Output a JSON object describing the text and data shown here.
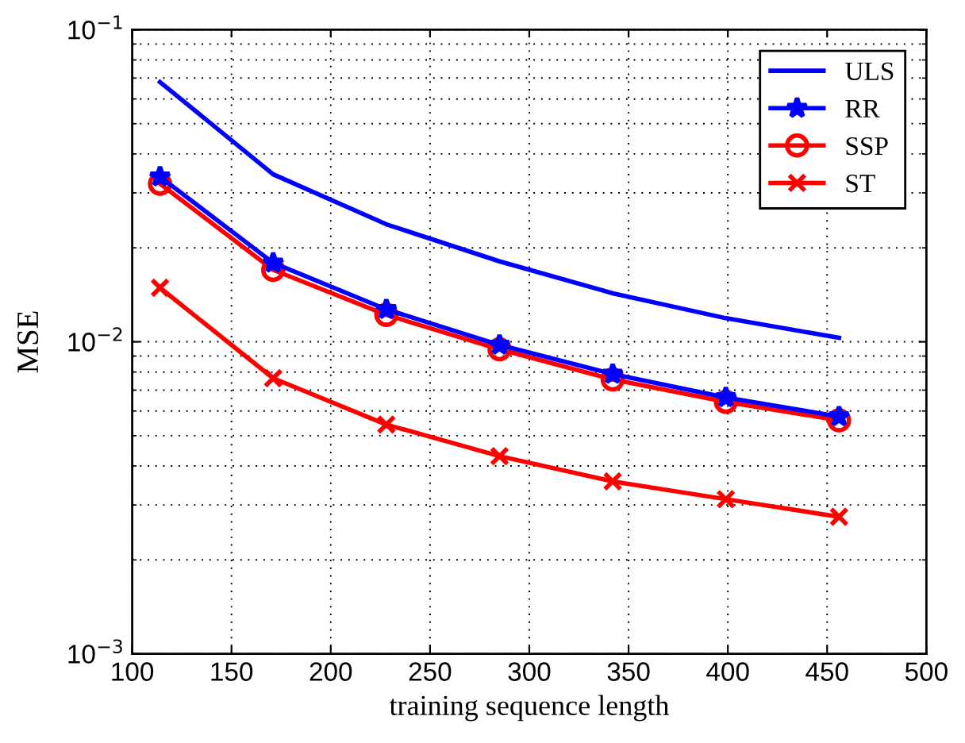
{
  "chart_data": {
    "type": "line",
    "xlabel": "training sequence length",
    "ylabel": "MSE",
    "log": "y",
    "grid": true,
    "legend": "top right",
    "line_style": "solid",
    "x": [
      114,
      171,
      228,
      285,
      342,
      399,
      456
    ],
    "xlim": [
      100,
      500
    ],
    "xticks": [
      100,
      150,
      200,
      250,
      300,
      350,
      400,
      450,
      500
    ],
    "ylim": [
      0.001,
      0.1
    ],
    "yticks": [
      {
        "value": 0.001,
        "label": "10$^{−3}$"
      },
      {
        "value": 0.01,
        "label": "10$^{−2}$"
      },
      {
        "value": 0.1,
        "label": "10$^{−1}$"
      }
    ],
    "series": [
      {
        "name": "ULS",
        "color": "#0000ff",
        "marker": "none",
        "values": [
          0.068,
          0.0344,
          0.0238,
          0.0181,
          0.0143,
          0.0119,
          0.0103
        ]
      },
      {
        "name": "RR",
        "color": "#0000ff",
        "marker": "star",
        "values": [
          0.0338,
          0.0179,
          0.0127,
          0.00977,
          0.00788,
          0.00663,
          0.00576
        ]
      },
      {
        "name": "SSP",
        "color": "#ff0000",
        "marker": "circle",
        "values": [
          0.0321,
          0.017,
          0.0122,
          0.00946,
          0.00757,
          0.00642,
          0.0056
        ]
      },
      {
        "name": "ST",
        "color": "#ff0000",
        "marker": "cross",
        "values": [
          0.0149,
          0.00764,
          0.00543,
          0.0043,
          0.00357,
          0.00313,
          0.00275
        ]
      }
    ]
  }
}
